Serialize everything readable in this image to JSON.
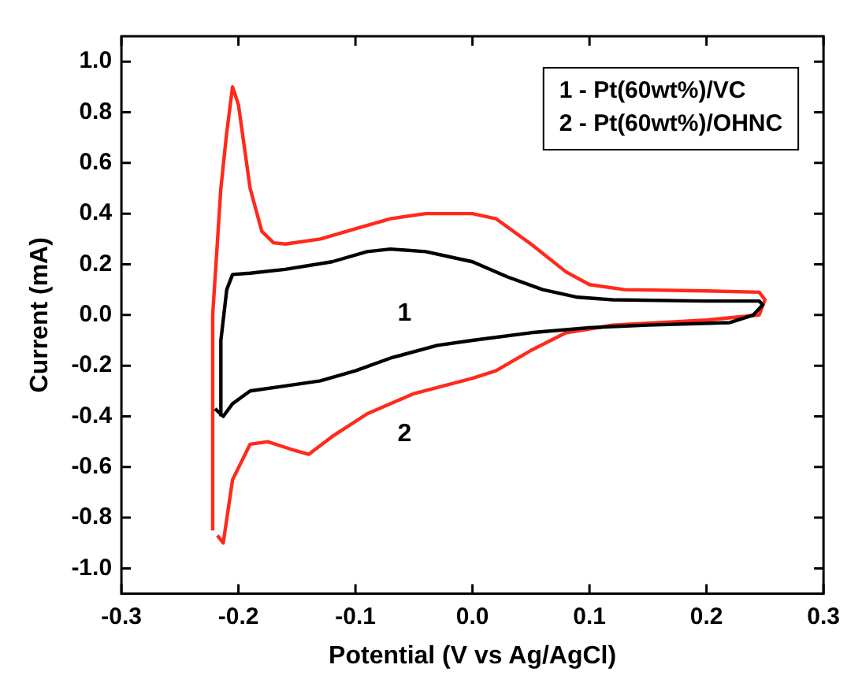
{
  "chart_data": {
    "type": "line",
    "xlabel": "Potential (V vs Ag/AgCl)",
    "ylabel": "Current (mA)",
    "xlim": [
      -0.3,
      0.3
    ],
    "ylim": [
      -1.1,
      1.1
    ],
    "xticks": [
      {
        "value": -0.3,
        "label": "-0.3"
      },
      {
        "value": -0.2,
        "label": "-0.2"
      },
      {
        "value": -0.1,
        "label": "-0.1"
      },
      {
        "value": 0,
        "label": "0.0"
      },
      {
        "value": 0.1,
        "label": "0.1"
      },
      {
        "value": 0.2,
        "label": "0.2"
      },
      {
        "value": 0.3,
        "label": "0.3"
      }
    ],
    "yticks": [
      {
        "value": -1,
        "label": "-1.0"
      },
      {
        "value": -0.8,
        "label": "-0.8"
      },
      {
        "value": -0.6,
        "label": "-0.6"
      },
      {
        "value": -0.4,
        "label": "-0.4"
      },
      {
        "value": -0.2,
        "label": "-0.2"
      },
      {
        "value": 0,
        "label": "0.0"
      },
      {
        "value": 0.2,
        "label": "0.2"
      },
      {
        "value": 0.4,
        "label": "0.4"
      },
      {
        "value": 0.6,
        "label": "0.6"
      },
      {
        "value": 0.8,
        "label": "0.8"
      },
      {
        "value": 1,
        "label": "1.0"
      }
    ],
    "grid": false,
    "marker": "none",
    "line_style": "solid",
    "series": [
      {
        "color": "#000000",
        "x": [
          -0.215,
          -0.215,
          -0.21,
          -0.205,
          -0.19,
          -0.16,
          -0.12,
          -0.09,
          -0.07,
          -0.04,
          0.0,
          0.03,
          0.06,
          0.09,
          0.12,
          0.2,
          0.245,
          0.248,
          0.24,
          0.22,
          0.15,
          0.1,
          0.05,
          0.0,
          -0.03,
          -0.07,
          -0.1,
          -0.13,
          -0.16,
          -0.19,
          -0.205,
          -0.213,
          -0.22
        ],
        "values": [
          -0.4,
          -0.1,
          0.1,
          0.16,
          0.165,
          0.18,
          0.21,
          0.25,
          0.26,
          0.25,
          0.21,
          0.15,
          0.1,
          0.07,
          0.06,
          0.055,
          0.055,
          0.04,
          0.0,
          -0.03,
          -0.04,
          -0.05,
          -0.07,
          -0.1,
          -0.12,
          -0.17,
          -0.22,
          -0.26,
          -0.28,
          -0.3,
          -0.35,
          -0.4,
          -0.37
        ]
      },
      {
        "color": "#ff2a1a",
        "x": [
          -0.222,
          -0.222,
          -0.215,
          -0.21,
          -0.205,
          -0.2,
          -0.19,
          -0.18,
          -0.17,
          -0.16,
          -0.13,
          -0.1,
          -0.07,
          -0.04,
          0.0,
          0.02,
          0.05,
          0.08,
          0.1,
          0.13,
          0.2,
          0.245,
          0.25,
          0.245,
          0.2,
          0.12,
          0.08,
          0.05,
          0.02,
          0.0,
          -0.05,
          -0.09,
          -0.12,
          -0.14,
          -0.155,
          -0.175,
          -0.19,
          -0.205,
          -0.213,
          -0.218
        ],
        "values": [
          -0.85,
          0.0,
          0.5,
          0.72,
          0.9,
          0.83,
          0.5,
          0.33,
          0.285,
          0.28,
          0.3,
          0.34,
          0.38,
          0.4,
          0.4,
          0.38,
          0.28,
          0.17,
          0.12,
          0.1,
          0.095,
          0.09,
          0.06,
          0.0,
          -0.02,
          -0.04,
          -0.07,
          -0.14,
          -0.22,
          -0.25,
          -0.31,
          -0.39,
          -0.48,
          -0.55,
          -0.53,
          -0.5,
          -0.51,
          -0.65,
          -0.9,
          -0.87
        ]
      }
    ],
    "annotations": [
      "1 - Pt(60wt%)/VC",
      "2 - Pt(60wt%)/OHNC",
      {
        "text": "1",
        "x": -0.05,
        "y": -0.145
      },
      {
        "text": "2",
        "x": -0.05,
        "y": -0.31
      }
    ]
  }
}
